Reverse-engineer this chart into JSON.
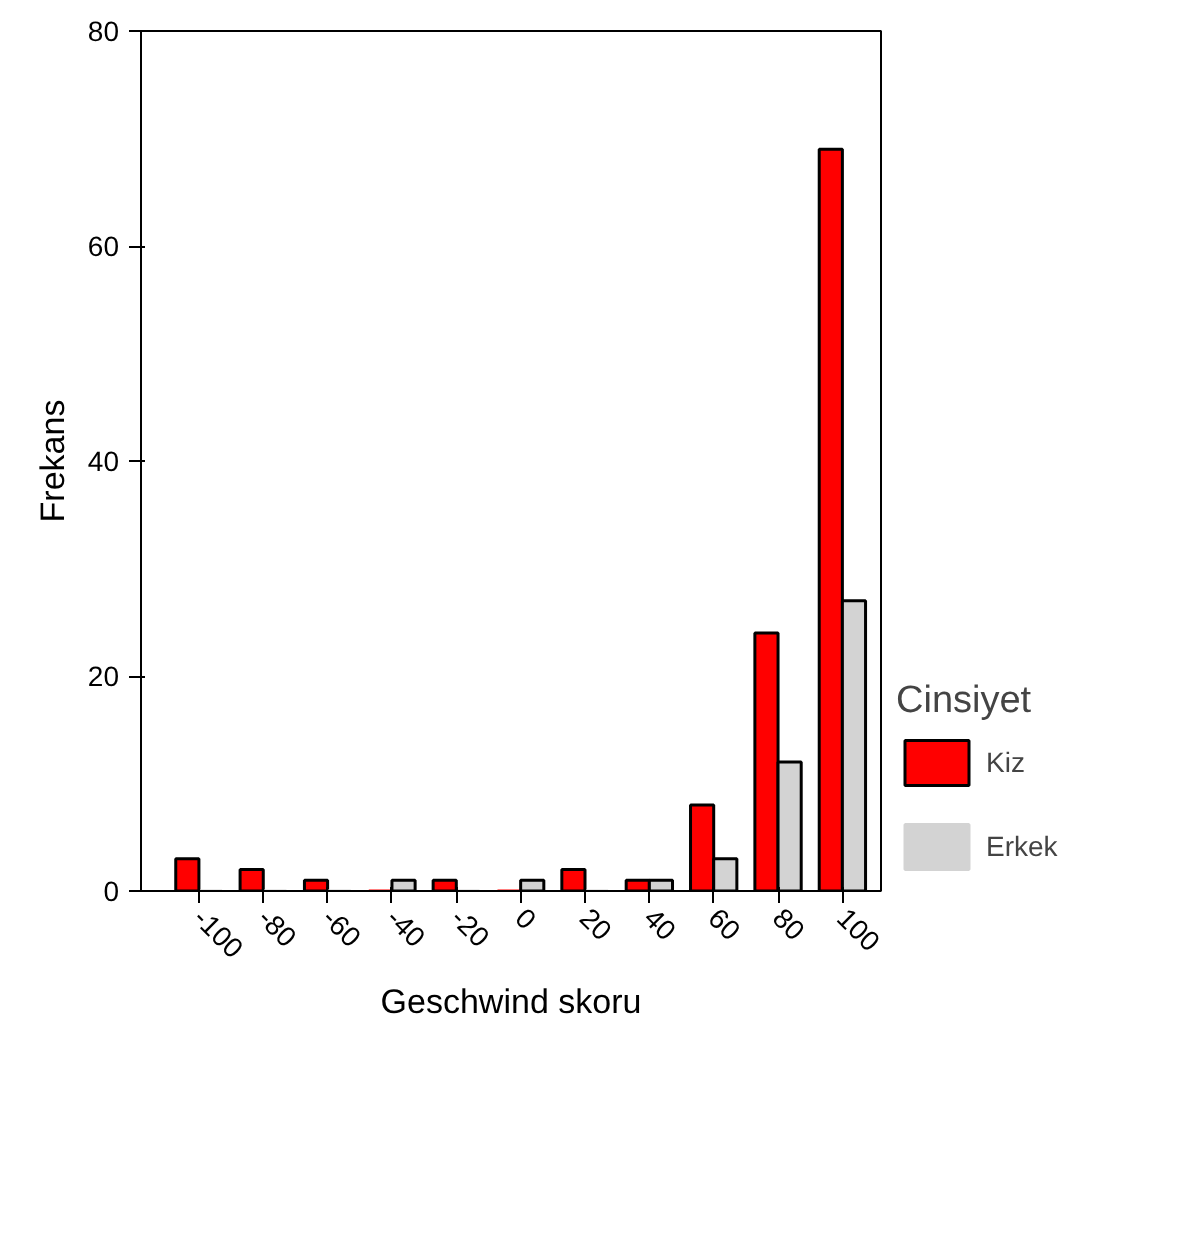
{
  "chart_data": {
    "type": "bar",
    "xlabel": "Geschwind skoru",
    "ylabel": "Frekans",
    "legend_title": "Cinsiyet",
    "categories": [
      "-100",
      "-80",
      "-60",
      "-40",
      "-20",
      "0",
      "20",
      "40",
      "60",
      "80",
      "100"
    ],
    "series": [
      {
        "name": "Kiz",
        "color": "#ff0000",
        "values": [
          3,
          2,
          1,
          0,
          1,
          0,
          2,
          1,
          8,
          24,
          69
        ]
      },
      {
        "name": "Erkek",
        "color": "#d3d3d3",
        "values": [
          0,
          0,
          0,
          1,
          0,
          1,
          0,
          1,
          3,
          12,
          27
        ]
      }
    ],
    "ylim": [
      0,
      80
    ],
    "yticks": [
      0,
      20,
      40,
      60,
      80
    ],
    "grid": false,
    "legend": "right"
  }
}
